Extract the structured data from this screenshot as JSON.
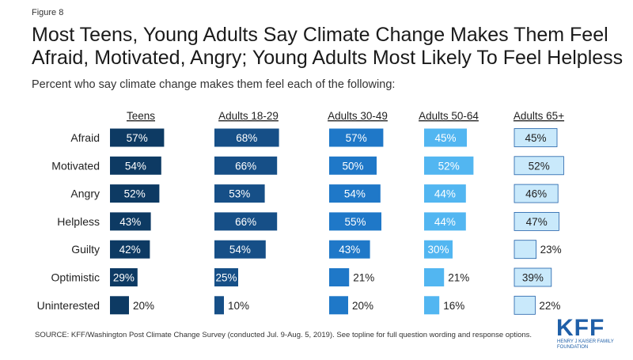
{
  "figure_label": "Figure 8",
  "title": "Most Teens, Young Adults Say Climate Change Makes Them Feel Afraid, Motivated, Angry; Young Adults Most Likely To Feel Helpless",
  "subtitle": "Percent who say climate change makes them feel each of the following:",
  "source": "SOURCE: KFF/Washington Post Climate Change Survey (conducted Jul. 9-Aug. 5, 2019). See topline for full question wording and response options.",
  "logo": {
    "word": "KFF",
    "sub": "HENRY J KAISER FAMILY FOUNDATION"
  },
  "chart_data": {
    "type": "bar",
    "orientation": "horizontal",
    "layout": "small-multiples",
    "categories": [
      "Afraid",
      "Motivated",
      "Angry",
      "Helpless",
      "Guilty",
      "Optimistic",
      "Uninterested"
    ],
    "value_suffix": "%",
    "series": [
      {
        "name": "Teens",
        "color": "#0d3a63",
        "values": [
          57,
          54,
          52,
          43,
          42,
          29,
          20
        ]
      },
      {
        "name": "Adults 18-29",
        "color": "#164f87",
        "values": [
          68,
          66,
          53,
          66,
          54,
          25,
          10
        ]
      },
      {
        "name": "Adults 30-49",
        "color": "#1f78c8",
        "values": [
          57,
          50,
          54,
          55,
          43,
          21,
          20
        ]
      },
      {
        "name": "Adults 50-64",
        "color": "#52b6f1",
        "values": [
          45,
          52,
          44,
          44,
          30,
          21,
          16
        ]
      },
      {
        "name": "Adults 65+",
        "color": "#c9e9fb",
        "values": [
          45,
          52,
          46,
          47,
          23,
          39,
          22
        ]
      }
    ]
  }
}
